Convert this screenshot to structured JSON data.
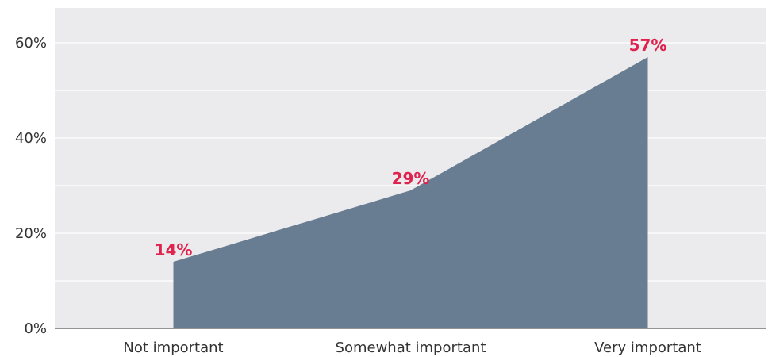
{
  "chart_data": {
    "type": "area",
    "categories": [
      "Not important",
      "Somewhat important",
      "Very important"
    ],
    "values": [
      14,
      29,
      57
    ],
    "data_labels": [
      "14%",
      "29%",
      "57%"
    ],
    "title": "",
    "xlabel": "",
    "ylabel": "",
    "ylim": [
      0,
      60
    ],
    "yticks": [
      0,
      20,
      40,
      60
    ],
    "ytick_labels": [
      "0%",
      "20%",
      "40%",
      "60%"
    ],
    "grid": true,
    "minor_grid": true,
    "colors": {
      "plot_background": "#ebebed",
      "area_fill": "#687d91",
      "grid_line": "#ffffff",
      "axis_line": "#555555",
      "data_label": "#e0224e"
    }
  }
}
